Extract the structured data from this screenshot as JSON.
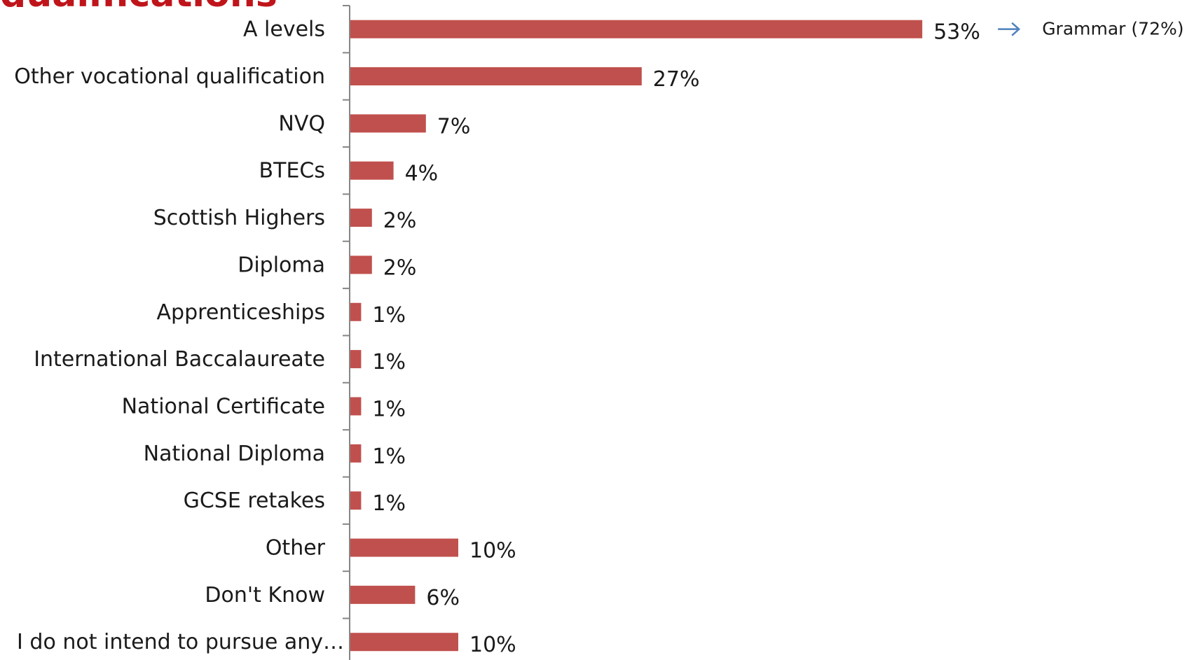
{
  "header": {
    "title_fragment": "qualifications"
  },
  "chart_data": {
    "type": "bar",
    "orientation": "horizontal",
    "categories": [
      "A levels",
      "Other vocational qualification",
      "NVQ",
      "BTECs",
      "Scottish Highers",
      "Diploma",
      "Apprenticeships",
      "International Baccalaureate",
      "National Certificate",
      "National Diploma",
      "GCSE retakes",
      "Other",
      "Don't Know",
      "I do not intend to pursue any…"
    ],
    "values": [
      53,
      27,
      7,
      4,
      2,
      2,
      1,
      1,
      1,
      1,
      1,
      10,
      6,
      10
    ],
    "value_labels": [
      "53%",
      "27%",
      "7%",
      "4%",
      "2%",
      "2%",
      "1%",
      "1%",
      "1%",
      "1%",
      "1%",
      "10%",
      "6%",
      "10%"
    ],
    "bar_color": "#c0504d",
    "axis_color": "#868686",
    "arrow_color": "#4f81bd",
    "grid": false,
    "legend": "none",
    "annotation": {
      "category": "A levels",
      "text": "Grammar (72%)"
    }
  }
}
